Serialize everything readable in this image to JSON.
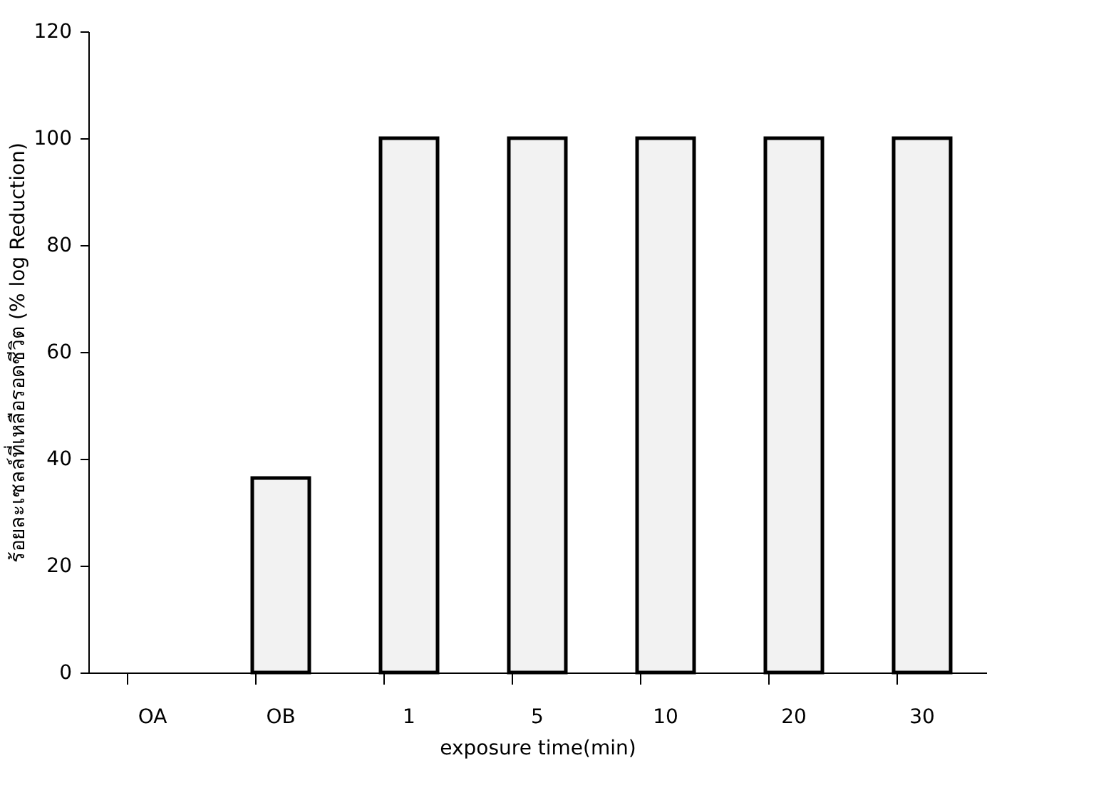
{
  "chart_data": {
    "type": "bar",
    "categories": [
      "OA",
      "OB",
      "1",
      "5",
      "10",
      "20",
      "30"
    ],
    "values": [
      0,
      36.4,
      100,
      100,
      100,
      100,
      100
    ],
    "color": "#f2f2f2",
    "xlabel": "exposure time(min)",
    "ylabel": "ร้อยละเซลล์ที่เหลือรอดชีวิต (% log Reduction)",
    "ylim": [
      0,
      120
    ],
    "yticks": [
      0,
      20,
      40,
      60,
      80,
      100,
      120
    ],
    "grid": false
  }
}
